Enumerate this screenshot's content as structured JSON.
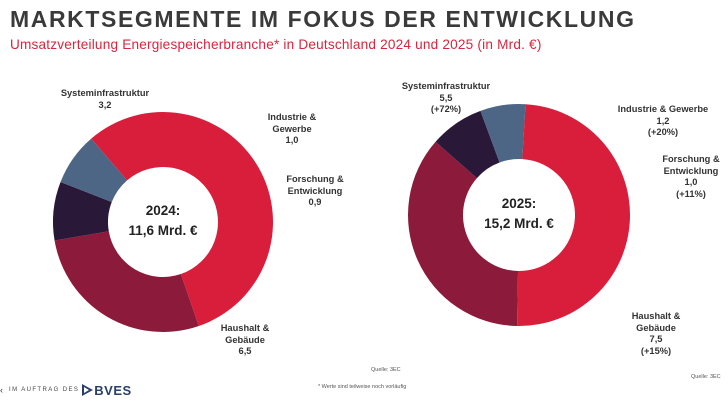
{
  "header": {
    "title": "MARKTSEGMENTE IM FOKUS DER ENTWICKLUNG",
    "subtitle": "Umsatzverteilung Energiespeicherbranche* in Deutschland 2024 und 2025 (in Mrd. €)"
  },
  "chart_data": [
    {
      "type": "pie",
      "variant": "donut",
      "center": [
        "2024:",
        "11,6 Mrd. €"
      ],
      "slices": [
        {
          "name": "Systeminfrastruktur",
          "value": 3.2,
          "label_lines": [
            "Systeminfrastruktur",
            "3,2"
          ],
          "color": "#8b1a3b"
        },
        {
          "name": "Industrie & Gewerbe",
          "value": 1.0,
          "label_lines": [
            "Industrie &",
            "Gewerbe",
            "1,0"
          ],
          "color": "#2a1838"
        },
        {
          "name": "Forschung & Entwicklung",
          "value": 0.9,
          "label_lines": [
            "Forschung &",
            "Entwicklung",
            "0,9"
          ],
          "color": "#4e6685"
        },
        {
          "name": "Haushalt & Gebäude",
          "value": 6.5,
          "label_lines": [
            "Haushalt &",
            "Gebäude",
            "6,5"
          ],
          "color": "#d81e3a"
        }
      ],
      "source": "Quelle: 3EC"
    },
    {
      "type": "pie",
      "variant": "donut",
      "center": [
        "2025:",
        "15,2 Mrd. €"
      ],
      "slices": [
        {
          "name": "Systeminfrastruktur",
          "value": 5.5,
          "label_lines": [
            "Systeminfrastruktur",
            "5,5",
            "(+72%)"
          ],
          "color": "#8b1a3b"
        },
        {
          "name": "Industrie & Gewerbe",
          "value": 1.2,
          "label_lines": [
            "Industrie & Gewerbe",
            "1,2",
            "(+20%)"
          ],
          "color": "#2a1838"
        },
        {
          "name": "Forschung & Entwicklung",
          "value": 1.0,
          "label_lines": [
            "Forschung &",
            "Entwicklung",
            "1,0",
            "(+11%)"
          ],
          "color": "#4e6685"
        },
        {
          "name": "Haushalt & Gebäude",
          "value": 7.5,
          "label_lines": [
            "Haushalt &",
            "Gebäude",
            "7,5",
            "(+15%)"
          ],
          "color": "#d81e3a"
        }
      ],
      "source": "Quelle: 3EC"
    }
  ],
  "footnote": "* Werte sind teilweise noch vorläufig",
  "footer": {
    "caret": "‹",
    "auftrag": "IM AUFTRAG DES",
    "logo_text": "BVES",
    "logo_color": "#2a3f6b"
  }
}
